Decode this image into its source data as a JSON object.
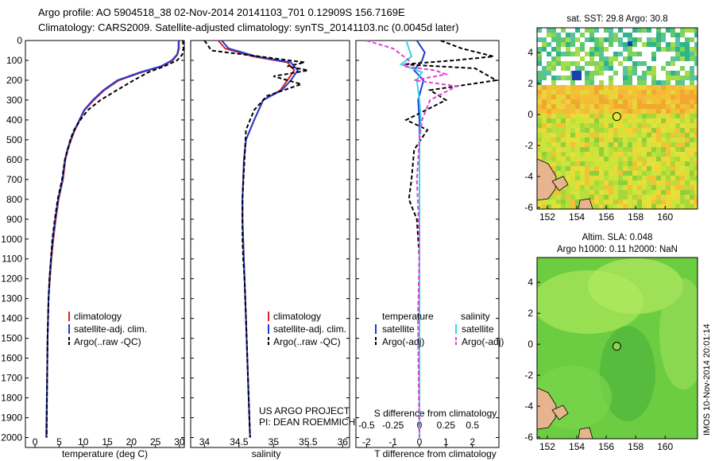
{
  "header": {
    "line1": "Argo profile: AO 5904518_38 02-Nov-2014 20141103_701 0.12909S 156.7169E",
    "line2": "Climatology: CARS2009. Satellite-adjusted climatology: synTS_20141103.nc (0.0045d later)"
  },
  "colors": {
    "climatology": "#e0201b",
    "satellite": "#1f3bd6",
    "argo": "#000000",
    "sal_satellite": "#35d6e8",
    "sal_argo": "#e23fd8",
    "land": "#e8b48e"
  },
  "depth_axis": {
    "min": 0,
    "max": 2050,
    "ticks": [
      "0",
      "100",
      "200",
      "300",
      "400",
      "500",
      "600",
      "700",
      "800",
      "900",
      "1000",
      "1100",
      "1200",
      "1300",
      "1400",
      "1500",
      "1600",
      "1700",
      "1800",
      "1900",
      "2000"
    ]
  },
  "panels": {
    "temperature": {
      "xlabel": "temperature (deg C)",
      "ticks": [
        "0",
        "5",
        "10",
        "15",
        "20",
        "25",
        "30"
      ],
      "legend": [
        "climatology",
        "satellite-adj. clim.",
        "Argo(..raw -QC)"
      ]
    },
    "salinity": {
      "xlabel": "salinity",
      "ticks": [
        "34",
        "34.5",
        "35",
        "35.5",
        "36"
      ],
      "legend": [
        "climatology",
        "satellite-adj. clim.",
        "Argo(..raw -QC)"
      ],
      "credit1": "US ARGO PROJECT",
      "credit2": "PI: DEAN ROEMMICH"
    },
    "difference": {
      "xlabel": "T difference from climatology",
      "top_label": "S difference from climatology",
      "top_ticks": [
        "-0.5",
        "-0.25",
        "0",
        "0.25",
        "0.5"
      ],
      "bottom_ticks": [
        "-2",
        "-1",
        "0",
        "1",
        "2"
      ],
      "leg_temp_title": "temperature",
      "leg_sal_title": "salinity",
      "leg_sat": "satellite",
      "leg_argo": "Argo(-adj)"
    }
  },
  "maps": {
    "sst": {
      "title": "sat. SST: 29.8 Argo: 30.8",
      "xticks": [
        "152",
        "154",
        "156",
        "158",
        "160"
      ],
      "yticks": [
        "4",
        "2",
        "0",
        "-2",
        "-4",
        "-6"
      ]
    },
    "sla": {
      "title1": "Altim. SLA: 0.048",
      "title2": "Argo h1000: 0.11 h2000: NaN",
      "xticks": [
        "152",
        "154",
        "156",
        "158",
        "160"
      ],
      "yticks": [
        "4",
        "2",
        "0",
        "-2",
        "-4",
        "-6"
      ]
    },
    "argo_position": {
      "lon": 156.7169,
      "lat": -0.12909
    }
  },
  "watermark": "IMOS 10-Nov-2014 20:01:14",
  "chart_data": [
    {
      "type": "line",
      "title": "",
      "xlabel": "temperature (deg C)",
      "ylabel": "",
      "xlim": [
        -2,
        31
      ],
      "ylim": [
        2050,
        0
      ],
      "series": [
        {
          "name": "climatology",
          "x": [
            29.9,
            29.9,
            29.6,
            28.6,
            26.3,
            22.1,
            17.4,
            14.4,
            12.2,
            10.3,
            9.3,
            8.3,
            7.5,
            6.8,
            6.3,
            5.8,
            4.9,
            4.3,
            3.8,
            3.4,
            3.1,
            2.8,
            2.6,
            2.5,
            2.4
          ],
          "y": [
            0,
            40,
            70,
            100,
            130,
            160,
            200,
            250,
            300,
            350,
            400,
            450,
            500,
            550,
            600,
            700,
            800,
            900,
            1000,
            1100,
            1200,
            1300,
            1500,
            1700,
            2000
          ]
        },
        {
          "name": "satellite-adj. clim.",
          "x": [
            29.8,
            29.8,
            29.5,
            28.4,
            26.1,
            21.8,
            17.1,
            14.2,
            12.0,
            10.2,
            9.2,
            8.2,
            7.4,
            6.7,
            6.2,
            5.7,
            4.8,
            4.2,
            3.7,
            3.3,
            3.0,
            2.8,
            2.6,
            2.5,
            2.3
          ],
          "y": [
            0,
            40,
            70,
            100,
            130,
            160,
            200,
            250,
            300,
            350,
            400,
            450,
            500,
            550,
            600,
            700,
            800,
            900,
            1000,
            1100,
            1200,
            1300,
            1500,
            1700,
            2000
          ]
        },
        {
          "name": "Argo(..raw -QC)",
          "x": [
            30.7,
            30.8,
            30.6,
            29.5,
            26.8,
            23.5,
            20.5,
            17.0,
            13.6,
            11.0,
            9.4,
            8.1,
            7.3,
            6.8,
            6.2,
            5.6,
            4.7,
            4.1,
            3.6,
            3.3,
            3.0,
            2.8,
            2.6,
            2.5,
            2.4
          ],
          "y": [
            0,
            40,
            70,
            100,
            130,
            160,
            200,
            250,
            300,
            350,
            400,
            450,
            500,
            550,
            600,
            700,
            800,
            900,
            1000,
            1100,
            1200,
            1300,
            1500,
            1700,
            2000
          ]
        }
      ]
    },
    {
      "type": "line",
      "title": "",
      "xlabel": "salinity",
      "ylabel": "",
      "xlim": [
        33.8,
        36.1
      ],
      "ylim": [
        2050,
        0
      ],
      "series": [
        {
          "name": "climatology",
          "x": [
            34.2,
            34.3,
            34.7,
            35.2,
            35.3,
            35.2,
            35.1,
            34.85,
            34.72,
            34.6,
            34.57,
            34.55,
            34.55,
            34.56,
            34.58,
            34.6,
            34.62,
            34.64,
            34.66
          ],
          "y": [
            0,
            40,
            80,
            110,
            150,
            200,
            250,
            300,
            400,
            500,
            600,
            800,
            900,
            1000,
            1200,
            1400,
            1600,
            1800,
            2000
          ]
        },
        {
          "name": "satellite-adj. clim.",
          "x": [
            34.25,
            34.35,
            34.75,
            35.25,
            35.35,
            35.25,
            35.12,
            34.85,
            34.72,
            34.6,
            34.57,
            34.55,
            34.55,
            34.56,
            34.58,
            34.6,
            34.62,
            34.64,
            34.66
          ],
          "y": [
            0,
            40,
            80,
            110,
            150,
            200,
            250,
            300,
            400,
            500,
            600,
            800,
            900,
            1000,
            1200,
            1400,
            1600,
            1800,
            2000
          ]
        },
        {
          "name": "Argo(..raw -QC)",
          "x": [
            34.0,
            34.1,
            34.9,
            35.45,
            35.2,
            35.5,
            35.0,
            35.4,
            34.9,
            34.72,
            34.6,
            34.58,
            34.55,
            34.55,
            34.56,
            34.58,
            34.6,
            34.62,
            34.64,
            34.66
          ],
          "y": [
            0,
            50,
            85,
            110,
            130,
            150,
            180,
            220,
            280,
            350,
            450,
            600,
            800,
            1000,
            1100,
            1200,
            1400,
            1600,
            1800,
            2000
          ]
        }
      ]
    },
    {
      "type": "line",
      "title": "",
      "xlabel": "T difference from climatology",
      "ylabel": "",
      "xlim": [
        -2.4,
        3.0
      ],
      "ylim": [
        2050,
        0
      ],
      "series": [
        {
          "name": "temperature satellite",
          "x": [
            -0.1,
            0.2,
            0.1,
            -0.2,
            0.15,
            0.05,
            -0.05,
            0.0,
            0.0,
            0.0,
            0.0,
            0.0,
            0.0,
            0.0
          ],
          "y": [
            0,
            60,
            100,
            150,
            200,
            250,
            300,
            400,
            600,
            800,
            1000,
            1400,
            1800,
            2000
          ]
        },
        {
          "name": "temperature Argo(-adj)",
          "x": [
            0.8,
            1.6,
            2.8,
            1.3,
            -0.6,
            2.1,
            2.9,
            0.4,
            1.0,
            -0.5,
            0.3,
            -0.2,
            -0.3,
            -0.4,
            -0.1,
            0.0,
            -0.05,
            0.0
          ],
          "y": [
            0,
            40,
            80,
            100,
            120,
            140,
            200,
            250,
            300,
            400,
            450,
            550,
            700,
            800,
            900,
            1100,
            1400,
            2000
          ]
        },
        {
          "name": "salinity satellite",
          "x": [
            -0.5,
            -0.3,
            -0.7,
            0.1,
            -0.1,
            0.0,
            0.05,
            0.0,
            0.0,
            0.0,
            0.0,
            0.0
          ],
          "y": [
            0,
            80,
            120,
            160,
            200,
            300,
            400,
            500,
            800,
            1200,
            1600,
            2000
          ]
        },
        {
          "name": "salinity Argo(-adj)",
          "x": [
            -2.0,
            -1.0,
            -0.4,
            -0.6,
            0.6,
            1.0,
            -0.2,
            1.4,
            0.4,
            0.1,
            0.0,
            -0.1,
            0.0,
            -0.05,
            0.0
          ],
          "y": [
            0,
            40,
            100,
            130,
            150,
            170,
            200,
            230,
            300,
            400,
            500,
            700,
            1000,
            1500,
            2000
          ]
        }
      ]
    }
  ]
}
